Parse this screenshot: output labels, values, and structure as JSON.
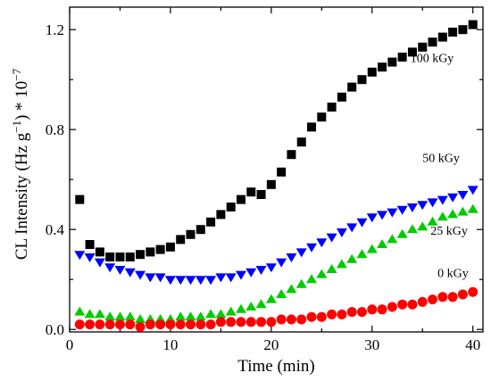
{
  "chart_data": {
    "type": "scatter",
    "title": "",
    "xlabel": "Time (min)",
    "ylabel": "CL Intensity (Hz g⁻¹) * 10⁻⁷",
    "xlim": [
      0,
      41
    ],
    "ylim": [
      -0.01,
      1.29
    ],
    "x_ticks": [
      0,
      10,
      20,
      30,
      40
    ],
    "y_ticks": [
      0.0,
      0.4,
      0.8,
      1.2
    ],
    "y_tick_labels": [
      "0.0",
      "0.4",
      "0.8",
      "1.2"
    ],
    "grid": false,
    "x": [
      1,
      2,
      3,
      4,
      5,
      6,
      7,
      8,
      9,
      10,
      11,
      12,
      13,
      14,
      15,
      16,
      17,
      18,
      19,
      20,
      21,
      22,
      23,
      24,
      25,
      26,
      27,
      28,
      29,
      30,
      31,
      32,
      33,
      34,
      35,
      36,
      37,
      38,
      39,
      40
    ],
    "series": [
      {
        "name": "100 kGy",
        "marker": "square",
        "color": "#000000",
        "values": [
          0.52,
          0.34,
          0.31,
          0.29,
          0.29,
          0.29,
          0.3,
          0.31,
          0.32,
          0.33,
          0.36,
          0.38,
          0.4,
          0.43,
          0.46,
          0.49,
          0.52,
          0.55,
          0.54,
          0.58,
          0.63,
          0.7,
          0.75,
          0.81,
          0.85,
          0.89,
          0.93,
          0.97,
          1.0,
          1.03,
          1.05,
          1.07,
          1.09,
          1.11,
          1.13,
          1.15,
          1.17,
          1.19,
          1.2,
          1.22
        ]
      },
      {
        "name": "50 kGy",
        "marker": "triangle-down",
        "color": "#0000ff",
        "values": [
          0.3,
          0.29,
          0.27,
          0.25,
          0.24,
          0.23,
          0.22,
          0.21,
          0.21,
          0.2,
          0.2,
          0.2,
          0.2,
          0.2,
          0.21,
          0.21,
          0.22,
          0.23,
          0.24,
          0.25,
          0.27,
          0.29,
          0.31,
          0.33,
          0.35,
          0.37,
          0.39,
          0.41,
          0.43,
          0.45,
          0.46,
          0.47,
          0.48,
          0.49,
          0.5,
          0.51,
          0.52,
          0.53,
          0.54,
          0.56
        ]
      },
      {
        "name": "25 kGy",
        "marker": "triangle-up",
        "color": "#00cc00",
        "values": [
          0.07,
          0.06,
          0.06,
          0.05,
          0.05,
          0.05,
          0.04,
          0.04,
          0.04,
          0.04,
          0.05,
          0.05,
          0.05,
          0.06,
          0.06,
          0.07,
          0.08,
          0.09,
          0.1,
          0.12,
          0.14,
          0.16,
          0.18,
          0.2,
          0.22,
          0.24,
          0.26,
          0.28,
          0.3,
          0.32,
          0.34,
          0.36,
          0.38,
          0.4,
          0.41,
          0.43,
          0.45,
          0.46,
          0.47,
          0.48
        ]
      },
      {
        "name": "0 kGy",
        "marker": "circle",
        "color": "#ff0000",
        "values": [
          0.02,
          0.02,
          0.02,
          0.02,
          0.02,
          0.02,
          0.01,
          0.02,
          0.02,
          0.02,
          0.02,
          0.02,
          0.02,
          0.02,
          0.03,
          0.03,
          0.03,
          0.03,
          0.03,
          0.03,
          0.04,
          0.04,
          0.04,
          0.05,
          0.05,
          0.06,
          0.06,
          0.07,
          0.07,
          0.08,
          0.08,
          0.09,
          0.1,
          0.1,
          0.11,
          0.12,
          0.13,
          0.13,
          0.14,
          0.15
        ]
      }
    ],
    "series_labels": [
      {
        "text": "100 kGy",
        "x": 33.8,
        "y": 1.07
      },
      {
        "text": "50 kGy",
        "x": 35.0,
        "y": 0.67
      },
      {
        "text": "25 kGy",
        "x": 35.8,
        "y": 0.38
      },
      {
        "text": "0 kGy",
        "x": 36.5,
        "y": 0.21
      }
    ]
  }
}
